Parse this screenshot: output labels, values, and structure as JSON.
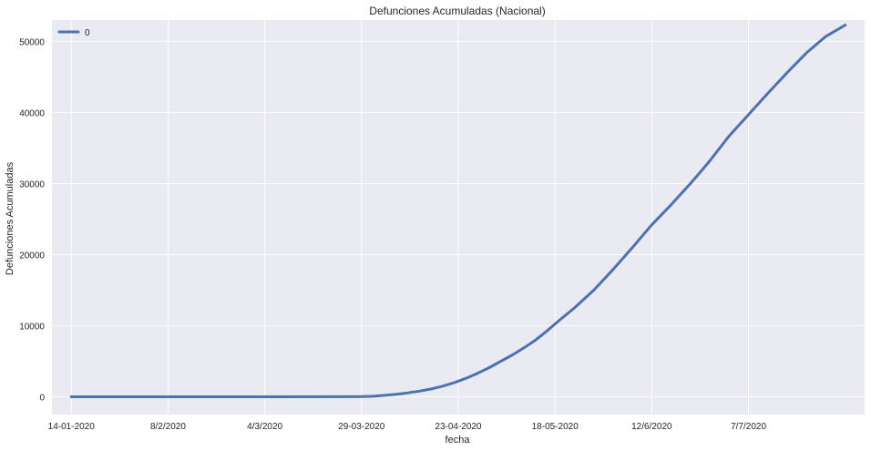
{
  "chart_data": {
    "type": "line",
    "title": "Defunciones Acumuladas (Nacional)",
    "xlabel": "fecha",
    "ylabel": "Defunciones Acumuladas",
    "x_tick_labels": [
      "14-01-2020",
      "8/2/2020",
      "4/3/2020",
      "29-03-2020",
      "23-04-2020",
      "18-05-2020",
      "12/6/2020",
      "7/7/2020"
    ],
    "y_ticks": [
      0,
      10000,
      20000,
      30000,
      40000,
      50000
    ],
    "ylim": [
      -2500,
      53000
    ],
    "xlim": [
      -5,
      205
    ],
    "grid": true,
    "legend": {
      "position": "top-left",
      "entries": [
        "0"
      ]
    },
    "series": [
      {
        "name": "0",
        "color": "#4c72b0",
        "x_day_index": [
          0,
          25,
          50,
          75,
          78,
          81,
          84,
          87,
          90,
          93,
          96,
          99,
          102,
          105,
          108,
          111,
          114,
          117,
          120,
          123,
          126,
          130,
          135,
          140,
          145,
          150,
          155,
          160,
          163,
          165,
          170,
          175,
          180,
          185,
          190,
          195,
          200
        ],
        "values": [
          0,
          0,
          0,
          20,
          80,
          200,
          350,
          550,
          800,
          1100,
          1500,
          2000,
          2600,
          3300,
          4100,
          5000,
          5900,
          6900,
          8000,
          9300,
          10700,
          12500,
          15000,
          17900,
          21000,
          24200,
          27000,
          30000,
          31900,
          33200,
          36700,
          39700,
          42700,
          45600,
          48400,
          50700,
          52300
        ]
      }
    ]
  }
}
